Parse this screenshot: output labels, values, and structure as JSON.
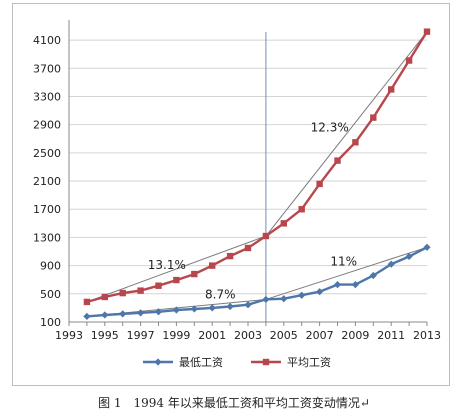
{
  "caption": "图 1　1994 年以来最低工资和平均工资变动情况↵",
  "chart_data": {
    "type": "line",
    "title": "",
    "xlabel": "",
    "ylabel": "",
    "xlim": [
      1993,
      2013
    ],
    "ylim": [
      100,
      4300
    ],
    "x_ticks": [
      1993,
      1995,
      1997,
      1999,
      2001,
      2003,
      2005,
      2007,
      2009,
      2011,
      2013
    ],
    "y_ticks": [
      100,
      500,
      900,
      1300,
      1700,
      2100,
      2500,
      2900,
      3300,
      3700,
      4100
    ],
    "grid": "horizontal",
    "legend_position": "bottom",
    "divider_x": 2004,
    "series": [
      {
        "name": "最低工资",
        "color": "#4f76a8",
        "marker": "diamond",
        "x": [
          1994,
          1995,
          1996,
          1997,
          1998,
          1999,
          2000,
          2001,
          2002,
          2003,
          2004,
          2005,
          2006,
          2007,
          2008,
          2009,
          2010,
          2011,
          2012,
          2013
        ],
        "values": [
          180,
          200,
          215,
          230,
          245,
          270,
          285,
          300,
          320,
          345,
          420,
          430,
          480,
          530,
          630,
          630,
          760,
          920,
          1030,
          1160
        ]
      },
      {
        "name": "平均工资",
        "color": "#b8474d",
        "marker": "square",
        "x": [
          1994,
          1995,
          1996,
          1997,
          1998,
          1999,
          2000,
          2001,
          2002,
          2003,
          2004,
          2005,
          2006,
          2007,
          2008,
          2009,
          2010,
          2011,
          2012,
          2013
        ],
        "values": [
          385,
          455,
          510,
          545,
          615,
          695,
          780,
          900,
          1035,
          1150,
          1320,
          1500,
          1700,
          2060,
          2390,
          2650,
          3000,
          3400,
          3810,
          4220
        ]
      }
    ],
    "trend_lines": [
      {
        "label": "13.1%",
        "from": [
          1994,
          385
        ],
        "to": [
          2004,
          1320
        ]
      },
      {
        "label": "12.3%",
        "from": [
          2004,
          1320
        ],
        "to": [
          2013,
          4220
        ]
      },
      {
        "label": "8.7%",
        "from": [
          1994,
          180
        ],
        "to": [
          2004,
          420
        ]
      },
      {
        "label": "11%",
        "from": [
          2004,
          420
        ],
        "to": [
          2013,
          1160
        ]
      }
    ],
    "annotations": [
      {
        "text": "13.1%",
        "x": 1997.4,
        "y": 850
      },
      {
        "text": "12.3%",
        "x": 2006.5,
        "y": 2800
      },
      {
        "text": "8.7%",
        "x": 2000.6,
        "y": 430
      },
      {
        "text": "11%",
        "x": 2007.6,
        "y": 900
      }
    ]
  }
}
